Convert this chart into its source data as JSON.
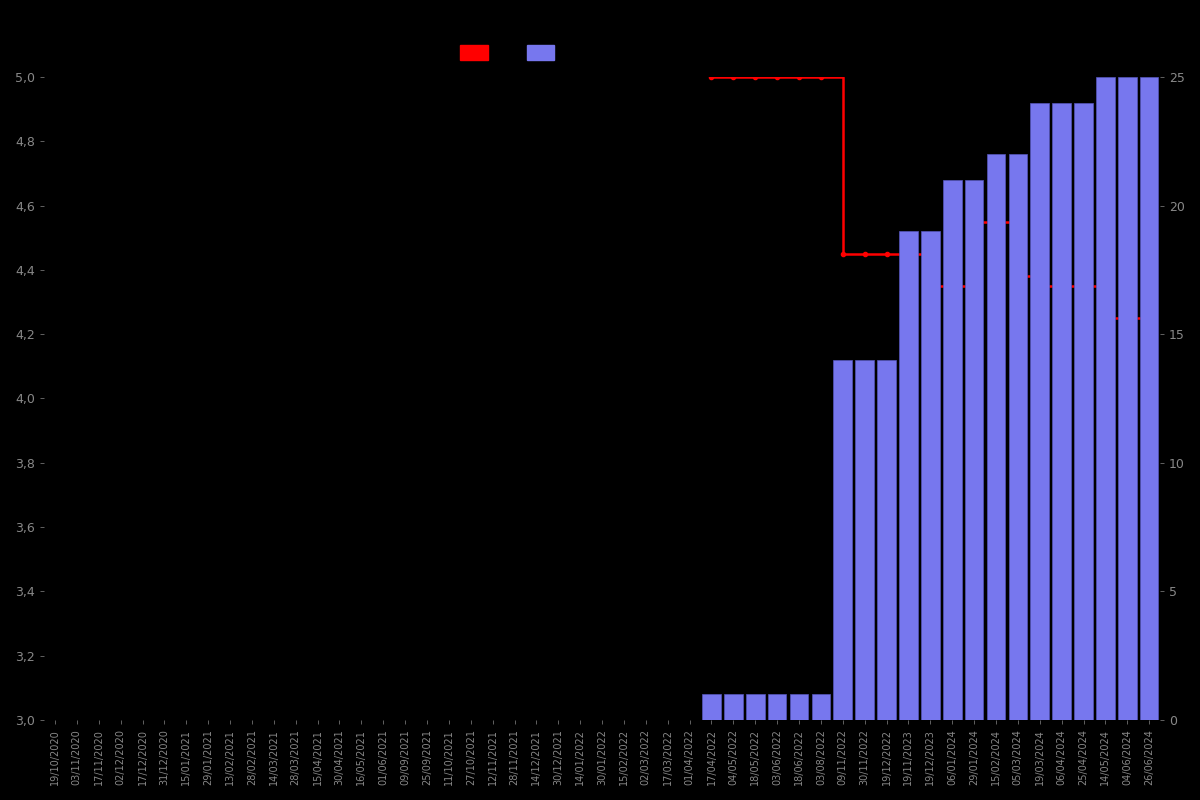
{
  "background_color": "#000000",
  "bar_color": "#7777ee",
  "bar_edge_color": "#5555bb",
  "line_color": "#ff0000",
  "line_marker": "o",
  "line_marker_size": 3,
  "left_ylim": [
    3.0,
    5.0
  ],
  "right_ylim": [
    0,
    25
  ],
  "left_yticks": [
    3.0,
    3.2,
    3.4,
    3.6,
    3.8,
    4.0,
    4.2,
    4.4,
    4.6,
    4.8,
    5.0
  ],
  "right_yticks": [
    0,
    5,
    10,
    15,
    20,
    25
  ],
  "tick_color": "#888888",
  "text_color": "#888888",
  "dates": [
    "19/10/2020",
    "03/11/2020",
    "17/11/2020",
    "02/12/2020",
    "17/12/2020",
    "31/12/2020",
    "15/01/2021",
    "29/01/2021",
    "13/02/2021",
    "28/02/2021",
    "14/03/2021",
    "28/03/2021",
    "15/04/2021",
    "30/04/2021",
    "16/05/2021",
    "01/06/2021",
    "09/09/2021",
    "25/09/2021",
    "11/10/2021",
    "27/10/2021",
    "12/11/2021",
    "28/11/2021",
    "14/12/2021",
    "30/12/2021",
    "14/01/2022",
    "30/01/2022",
    "15/02/2022",
    "02/03/2022",
    "17/03/2022",
    "01/04/2022",
    "17/04/2022",
    "04/05/2022",
    "18/05/2022",
    "03/06/2022",
    "18/06/2022",
    "03/08/2022",
    "09/11/2022",
    "30/11/2022",
    "19/12/2022",
    "19/11/2023",
    "19/12/2023",
    "06/01/2024",
    "29/01/2024",
    "15/02/2024",
    "05/03/2024",
    "19/03/2024",
    "06/04/2024",
    "25/04/2024",
    "14/05/2024",
    "04/06/2024",
    "26/06/2024"
  ],
  "bar_counts": [
    0,
    0,
    0,
    0,
    0,
    0,
    0,
    0,
    0,
    0,
    0,
    0,
    0,
    0,
    0,
    0,
    0,
    0,
    0,
    0,
    0,
    0,
    0,
    0,
    0,
    0,
    0,
    0,
    0,
    0,
    1,
    1,
    1,
    1,
    1,
    1,
    14,
    14,
    14,
    19,
    19,
    21,
    21,
    22,
    22,
    24,
    24,
    24,
    25,
    25,
    25
  ],
  "avg_ratings": [
    null,
    null,
    null,
    null,
    null,
    null,
    null,
    null,
    null,
    null,
    null,
    null,
    null,
    null,
    null,
    null,
    null,
    null,
    null,
    null,
    null,
    null,
    null,
    null,
    null,
    null,
    null,
    null,
    null,
    null,
    5.0,
    5.0,
    5.0,
    5.0,
    5.0,
    5.0,
    4.45,
    4.45,
    4.45,
    4.45,
    4.35,
    4.35,
    4.55,
    4.55,
    4.38,
    4.35,
    4.35,
    4.35,
    4.25,
    4.25,
    4.25
  ],
  "legend_red_label": "",
  "legend_blue_label": ""
}
